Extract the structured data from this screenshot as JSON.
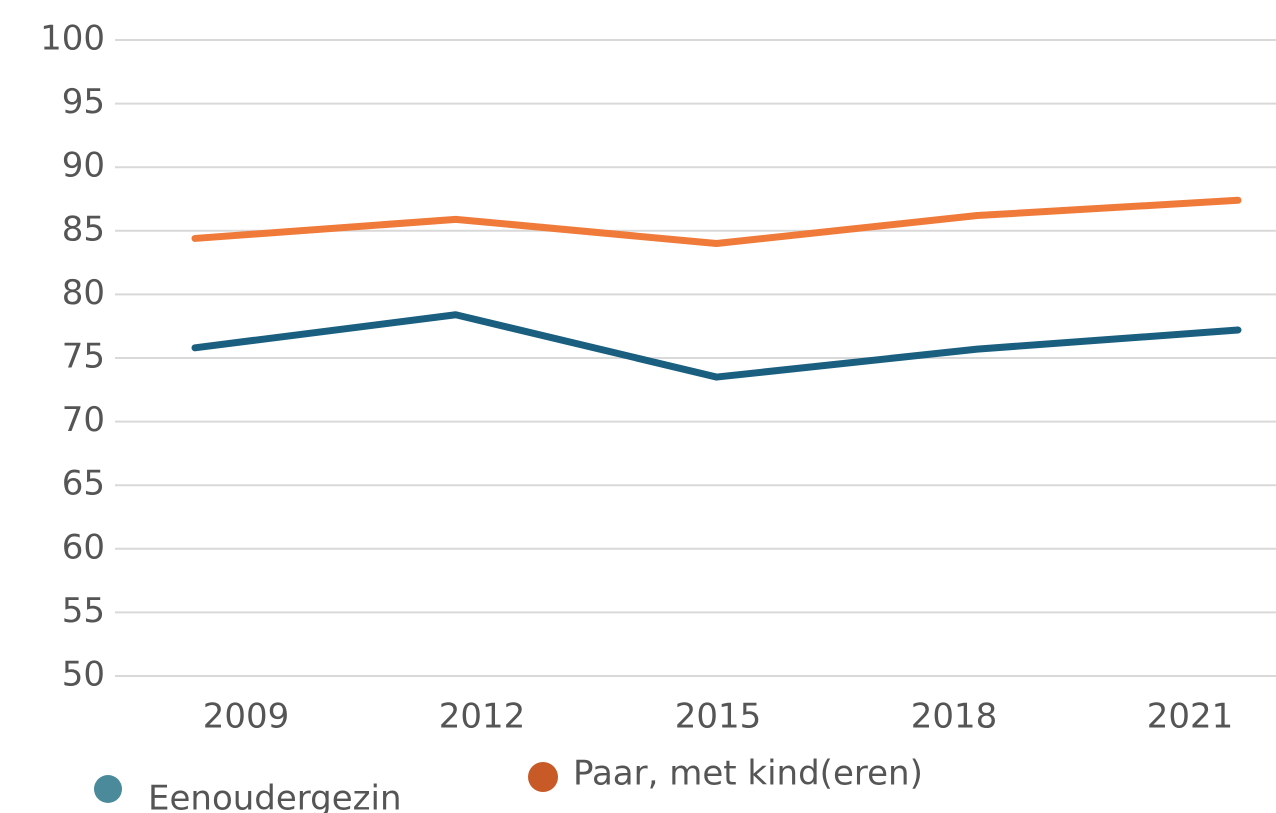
{
  "chart_data": {
    "type": "line",
    "categories": [
      "2009",
      "2012",
      "2015",
      "2018",
      "2021"
    ],
    "series": [
      {
        "name": "Eenoudergezin",
        "color": "#1a5f80",
        "legend_color": "#4a8a9a",
        "values": [
          75.8,
          78.4,
          73.5,
          75.7,
          77.2
        ]
      },
      {
        "name": "Paar, met kind(eren)",
        "color": "#f07a3a",
        "legend_color": "#c85a28",
        "values": [
          84.4,
          85.9,
          84.0,
          86.2,
          87.4
        ]
      }
    ],
    "ylim": [
      50,
      100
    ],
    "yticks": [
      50,
      55,
      60,
      65,
      70,
      75,
      80,
      85,
      90,
      95,
      100
    ],
    "grid": true
  }
}
